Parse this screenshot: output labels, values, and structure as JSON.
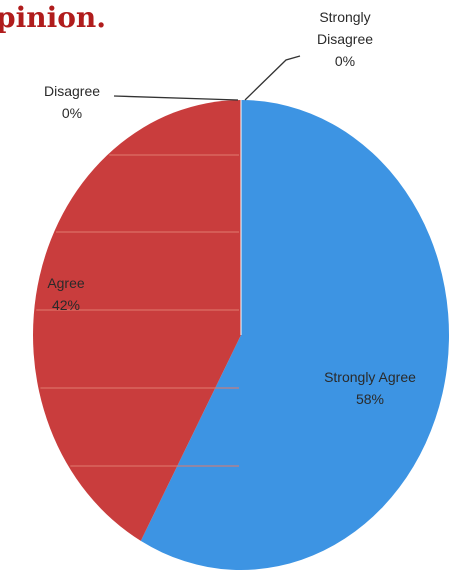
{
  "page": {
    "title_fragment": "pinion."
  },
  "chart_data": {
    "type": "pie",
    "title": "",
    "categories": [
      "Strongly Agree",
      "Agree",
      "Disagree",
      "Strongly Disagree"
    ],
    "values": [
      58,
      42,
      0,
      0
    ],
    "value_labels": [
      "58%",
      "42%",
      "0%",
      "0%"
    ],
    "colors": [
      "#3d94e3",
      "#c93d3d",
      "#c93d3d",
      "#3d94e3"
    ],
    "label_color": "#2a2a2a",
    "title_color": "#b01c1c",
    "start_angle": "12 o'clock",
    "direction": "clockwise",
    "legend": "none (labels on slices)"
  }
}
